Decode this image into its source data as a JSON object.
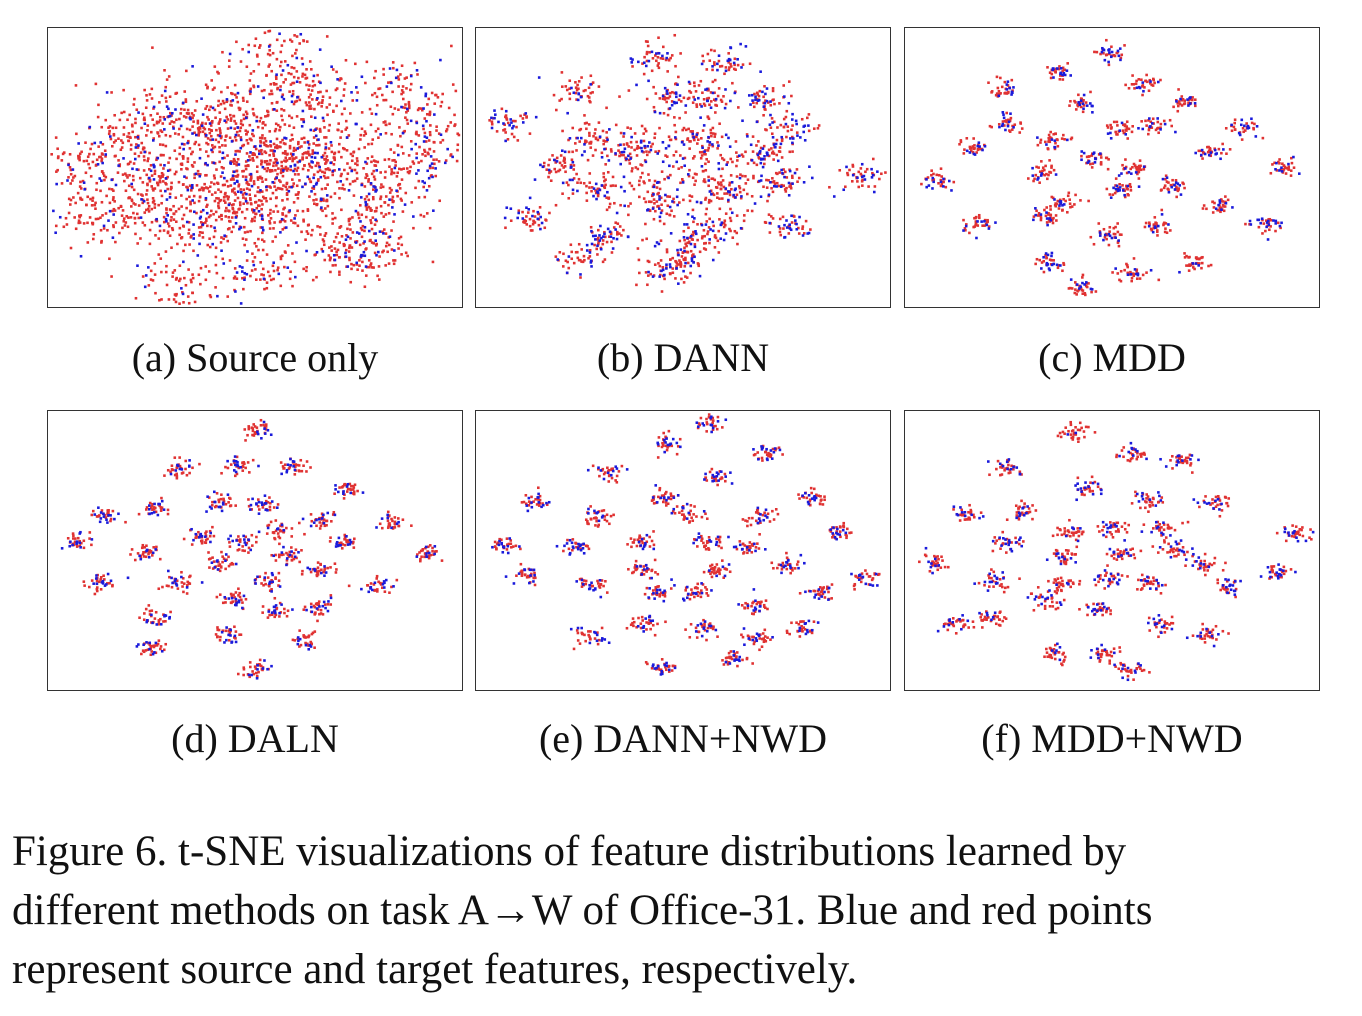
{
  "figure": {
    "caption_lines": [
      "Figure 6. t-SNE visualizations of feature distributions learned by",
      "different methods on task A→W of Office-31. Blue and red points",
      "represent source and target features, respectively."
    ]
  },
  "colors": {
    "source": "#1a1adb",
    "target": "#e03232"
  },
  "chart_data": [
    {
      "type": "scatter",
      "label": "(a) Source only",
      "style": "diffuse",
      "series": [
        {
          "color": "#1a1adb"
        },
        {
          "color": "#e03232"
        }
      ],
      "clusters": [
        [
          0.55,
          0.08
        ],
        [
          0.07,
          0.49
        ],
        [
          0.3,
          0.32
        ],
        [
          0.18,
          0.42
        ],
        [
          0.25,
          0.55
        ],
        [
          0.42,
          0.3
        ],
        [
          0.62,
          0.22
        ],
        [
          0.85,
          0.22
        ],
        [
          0.9,
          0.35
        ],
        [
          0.93,
          0.45
        ],
        [
          0.83,
          0.55
        ],
        [
          0.78,
          0.67
        ],
        [
          0.72,
          0.78
        ],
        [
          0.55,
          0.65
        ],
        [
          0.45,
          0.58
        ],
        [
          0.35,
          0.7
        ],
        [
          0.22,
          0.68
        ],
        [
          0.1,
          0.67
        ],
        [
          0.3,
          0.92
        ],
        [
          0.52,
          0.88
        ],
        [
          0.75,
          0.82
        ],
        [
          0.63,
          0.45
        ],
        [
          0.5,
          0.45
        ]
      ]
    },
    {
      "type": "scatter",
      "label": "(b) DANN",
      "style": "mixed",
      "series": [
        {
          "color": "#1a1adb"
        },
        {
          "color": "#e03232"
        }
      ],
      "clusters": [
        [
          0.43,
          0.1
        ],
        [
          0.6,
          0.12
        ],
        [
          0.25,
          0.23
        ],
        [
          0.47,
          0.25
        ],
        [
          0.56,
          0.25
        ],
        [
          0.7,
          0.25
        ],
        [
          0.07,
          0.34
        ],
        [
          0.27,
          0.4
        ],
        [
          0.38,
          0.45
        ],
        [
          0.55,
          0.4
        ],
        [
          0.76,
          0.36
        ],
        [
          0.92,
          0.53
        ],
        [
          0.2,
          0.5
        ],
        [
          0.7,
          0.45
        ],
        [
          0.3,
          0.58
        ],
        [
          0.45,
          0.62
        ],
        [
          0.6,
          0.58
        ],
        [
          0.74,
          0.55
        ],
        [
          0.13,
          0.68
        ],
        [
          0.32,
          0.75
        ],
        [
          0.52,
          0.75
        ],
        [
          0.59,
          0.72
        ],
        [
          0.76,
          0.72
        ],
        [
          0.26,
          0.82
        ],
        [
          0.45,
          0.88
        ],
        [
          0.51,
          0.83
        ]
      ]
    },
    {
      "type": "scatter",
      "label": "(c) MDD",
      "style": "clustered",
      "series": [
        {
          "color": "#1a1adb"
        },
        {
          "color": "#e03232"
        }
      ],
      "clusters": [
        [
          0.5,
          0.09
        ],
        [
          0.37,
          0.16
        ],
        [
          0.58,
          0.2
        ],
        [
          0.24,
          0.22
        ],
        [
          0.43,
          0.27
        ],
        [
          0.68,
          0.27
        ],
        [
          0.25,
          0.34
        ],
        [
          0.35,
          0.4
        ],
        [
          0.52,
          0.36
        ],
        [
          0.6,
          0.35
        ],
        [
          0.82,
          0.36
        ],
        [
          0.16,
          0.43
        ],
        [
          0.74,
          0.45
        ],
        [
          0.46,
          0.47
        ],
        [
          0.92,
          0.5
        ],
        [
          0.08,
          0.55
        ],
        [
          0.33,
          0.52
        ],
        [
          0.55,
          0.5
        ],
        [
          0.38,
          0.62
        ],
        [
          0.52,
          0.58
        ],
        [
          0.65,
          0.57
        ],
        [
          0.76,
          0.64
        ],
        [
          0.87,
          0.7
        ],
        [
          0.18,
          0.7
        ],
        [
          0.34,
          0.68
        ],
        [
          0.49,
          0.74
        ],
        [
          0.61,
          0.71
        ],
        [
          0.35,
          0.84
        ],
        [
          0.7,
          0.84
        ],
        [
          0.55,
          0.87
        ],
        [
          0.43,
          0.93
        ]
      ]
    },
    {
      "type": "scatter",
      "label": "(d) DALN",
      "style": "clustered",
      "series": [
        {
          "color": "#1a1adb"
        },
        {
          "color": "#e03232"
        }
      ],
      "clusters": [
        [
          0.51,
          0.07
        ],
        [
          0.32,
          0.21
        ],
        [
          0.47,
          0.2
        ],
        [
          0.59,
          0.2
        ],
        [
          0.72,
          0.28
        ],
        [
          0.42,
          0.32
        ],
        [
          0.52,
          0.34
        ],
        [
          0.26,
          0.35
        ],
        [
          0.66,
          0.39
        ],
        [
          0.14,
          0.38
        ],
        [
          0.83,
          0.4
        ],
        [
          0.37,
          0.45
        ],
        [
          0.56,
          0.43
        ],
        [
          0.47,
          0.47
        ],
        [
          0.07,
          0.47
        ],
        [
          0.71,
          0.47
        ],
        [
          0.24,
          0.51
        ],
        [
          0.58,
          0.52
        ],
        [
          0.92,
          0.51
        ],
        [
          0.42,
          0.54
        ],
        [
          0.66,
          0.57
        ],
        [
          0.13,
          0.62
        ],
        [
          0.31,
          0.62
        ],
        [
          0.53,
          0.61
        ],
        [
          0.45,
          0.68
        ],
        [
          0.8,
          0.63
        ],
        [
          0.65,
          0.7
        ],
        [
          0.26,
          0.74
        ],
        [
          0.55,
          0.72
        ],
        [
          0.43,
          0.8
        ],
        [
          0.62,
          0.82
        ],
        [
          0.25,
          0.85
        ],
        [
          0.5,
          0.93
        ]
      ]
    },
    {
      "type": "scatter",
      "label": "(e) DANN+NWD",
      "style": "clustered",
      "series": [
        {
          "color": "#1a1adb"
        },
        {
          "color": "#e03232"
        }
      ],
      "clusters": [
        [
          0.46,
          0.12
        ],
        [
          0.57,
          0.05
        ],
        [
          0.7,
          0.15
        ],
        [
          0.32,
          0.22
        ],
        [
          0.58,
          0.24
        ],
        [
          0.45,
          0.31
        ],
        [
          0.81,
          0.31
        ],
        [
          0.15,
          0.33
        ],
        [
          0.3,
          0.38
        ],
        [
          0.51,
          0.37
        ],
        [
          0.69,
          0.38
        ],
        [
          0.88,
          0.43
        ],
        [
          0.4,
          0.47
        ],
        [
          0.56,
          0.47
        ],
        [
          0.66,
          0.49
        ],
        [
          0.07,
          0.48
        ],
        [
          0.24,
          0.49
        ],
        [
          0.75,
          0.55
        ],
        [
          0.4,
          0.57
        ],
        [
          0.58,
          0.57
        ],
        [
          0.94,
          0.6
        ],
        [
          0.12,
          0.59
        ],
        [
          0.28,
          0.63
        ],
        [
          0.44,
          0.65
        ],
        [
          0.53,
          0.65
        ],
        [
          0.83,
          0.65
        ],
        [
          0.68,
          0.7
        ],
        [
          0.41,
          0.76
        ],
        [
          0.55,
          0.78
        ],
        [
          0.28,
          0.81
        ],
        [
          0.67,
          0.81
        ],
        [
          0.79,
          0.78
        ],
        [
          0.45,
          0.92
        ],
        [
          0.62,
          0.89
        ]
      ]
    },
    {
      "type": "scatter",
      "label": "(f) MDD+NWD",
      "style": "clustered",
      "series": [
        {
          "color": "#1a1adb"
        },
        {
          "color": "#e03232"
        }
      ],
      "clusters": [
        [
          0.41,
          0.08
        ],
        [
          0.55,
          0.15
        ],
        [
          0.67,
          0.18
        ],
        [
          0.25,
          0.2
        ],
        [
          0.44,
          0.27
        ],
        [
          0.59,
          0.32
        ],
        [
          0.75,
          0.33
        ],
        [
          0.15,
          0.37
        ],
        [
          0.29,
          0.36
        ],
        [
          0.4,
          0.43
        ],
        [
          0.5,
          0.42
        ],
        [
          0.62,
          0.42
        ],
        [
          0.94,
          0.44
        ],
        [
          0.25,
          0.47
        ],
        [
          0.38,
          0.52
        ],
        [
          0.52,
          0.51
        ],
        [
          0.65,
          0.49
        ],
        [
          0.08,
          0.54
        ],
        [
          0.72,
          0.55
        ],
        [
          0.9,
          0.58
        ],
        [
          0.22,
          0.61
        ],
        [
          0.38,
          0.62
        ],
        [
          0.49,
          0.6
        ],
        [
          0.6,
          0.62
        ],
        [
          0.78,
          0.63
        ],
        [
          0.34,
          0.68
        ],
        [
          0.47,
          0.71
        ],
        [
          0.12,
          0.76
        ],
        [
          0.21,
          0.74
        ],
        [
          0.62,
          0.77
        ],
        [
          0.73,
          0.8
        ],
        [
          0.48,
          0.87
        ],
        [
          0.36,
          0.87
        ],
        [
          0.54,
          0.93
        ]
      ]
    }
  ]
}
